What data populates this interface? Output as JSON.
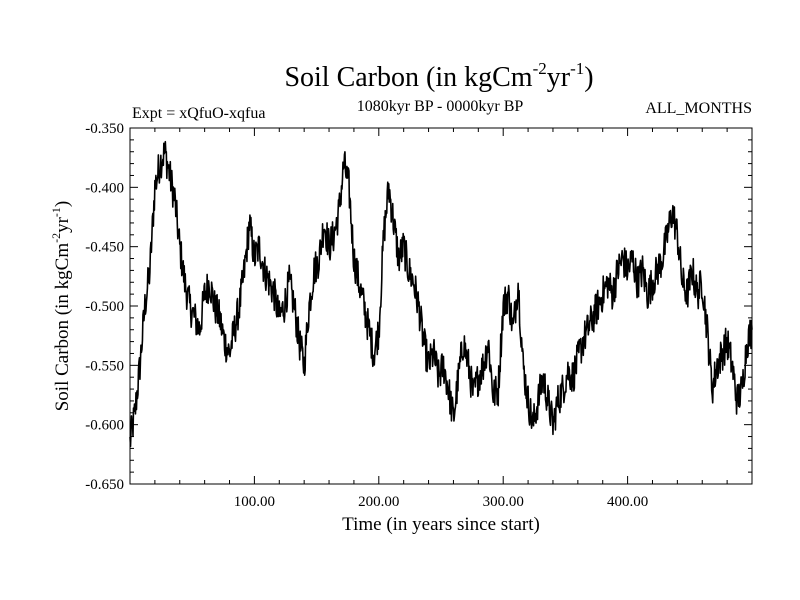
{
  "chart_data": {
    "type": "line",
    "title_main": "Soil Carbon (in kgCm",
    "title_sup1": "-2",
    "title_mid": "yr",
    "title_sup2": "-1",
    "title_end": ")",
    "subtitle_left": "Expt = xQfuO-xqfua",
    "subtitle_center": "1080kyr BP - 0000kyr BP",
    "subtitle_right": "ALL_MONTHS",
    "xlabel": "Time (in years since start)",
    "ylabel": {
      "main": "Soil Carbon (in kgCm",
      "sup1": "-2",
      "mid": "yr",
      "sup2": "-1",
      "end": ")"
    },
    "xlim": [
      0,
      500
    ],
    "ylim": [
      -0.65,
      -0.35
    ],
    "xticks": [
      100,
      200,
      300,
      400
    ],
    "xtick_labels": [
      "100.00",
      "200.00",
      "300.00",
      "400.00"
    ],
    "yticks": [
      -0.35,
      -0.4,
      -0.45,
      -0.5,
      -0.55,
      -0.6,
      -0.65
    ],
    "ytick_labels": [
      "-0.350",
      "-0.400",
      "-0.450",
      "-0.500",
      "-0.550",
      "-0.600",
      "-0.650"
    ],
    "grid": false,
    "line_color": "#000000",
    "series": [
      {
        "name": "Soil Carbon",
        "x": [
          0,
          4,
          8,
          12,
          16,
          20,
          24,
          28,
          32,
          36,
          40,
          44,
          48,
          52,
          56,
          60,
          64,
          68,
          72,
          76,
          80,
          84,
          88,
          92,
          96,
          100,
          104,
          108,
          112,
          116,
          120,
          124,
          128,
          132,
          136,
          140,
          144,
          148,
          152,
          156,
          160,
          164,
          168,
          172,
          176,
          180,
          184,
          188,
          192,
          196,
          200,
          204,
          208,
          212,
          216,
          220,
          224,
          228,
          232,
          236,
          240,
          244,
          248,
          252,
          256,
          260,
          264,
          268,
          272,
          276,
          280,
          284,
          288,
          292,
          296,
          300,
          304,
          308,
          312,
          316,
          320,
          324,
          328,
          332,
          336,
          340,
          344,
          348,
          352,
          356,
          360,
          364,
          368,
          372,
          376,
          380,
          384,
          388,
          392,
          396,
          400,
          404,
          408,
          412,
          416,
          420,
          424,
          428,
          432,
          436,
          440,
          444,
          448,
          452,
          456,
          460,
          464,
          468,
          472,
          476,
          480,
          484,
          488,
          492,
          496,
          500
        ],
        "values": [
          -0.615,
          -0.59,
          -0.55,
          -0.5,
          -0.47,
          -0.4,
          -0.38,
          -0.37,
          -0.39,
          -0.41,
          -0.45,
          -0.48,
          -0.5,
          -0.51,
          -0.52,
          -0.49,
          -0.48,
          -0.5,
          -0.51,
          -0.53,
          -0.54,
          -0.52,
          -0.5,
          -0.47,
          -0.43,
          -0.46,
          -0.45,
          -0.47,
          -0.48,
          -0.49,
          -0.51,
          -0.5,
          -0.48,
          -0.5,
          -0.53,
          -0.55,
          -0.5,
          -0.47,
          -0.46,
          -0.43,
          -0.45,
          -0.44,
          -0.42,
          -0.38,
          -0.4,
          -0.46,
          -0.48,
          -0.5,
          -0.52,
          -0.54,
          -0.52,
          -0.44,
          -0.4,
          -0.43,
          -0.46,
          -0.45,
          -0.47,
          -0.48,
          -0.5,
          -0.53,
          -0.55,
          -0.54,
          -0.56,
          -0.55,
          -0.57,
          -0.595,
          -0.56,
          -0.53,
          -0.55,
          -0.575,
          -0.56,
          -0.55,
          -0.53,
          -0.575,
          -0.57,
          -0.5,
          -0.49,
          -0.52,
          -0.48,
          -0.55,
          -0.58,
          -0.6,
          -0.58,
          -0.56,
          -0.58,
          -0.6,
          -0.58,
          -0.57,
          -0.555,
          -0.56,
          -0.545,
          -0.53,
          -0.52,
          -0.51,
          -0.5,
          -0.49,
          -0.48,
          -0.49,
          -0.47,
          -0.46,
          -0.47,
          -0.46,
          -0.48,
          -0.47,
          -0.49,
          -0.48,
          -0.47,
          -0.46,
          -0.44,
          -0.42,
          -0.44,
          -0.48,
          -0.49,
          -0.47,
          -0.49,
          -0.48,
          -0.52,
          -0.57,
          -0.55,
          -0.54,
          -0.53,
          -0.55,
          -0.58,
          -0.57,
          -0.53,
          -0.52
        ]
      }
    ]
  }
}
